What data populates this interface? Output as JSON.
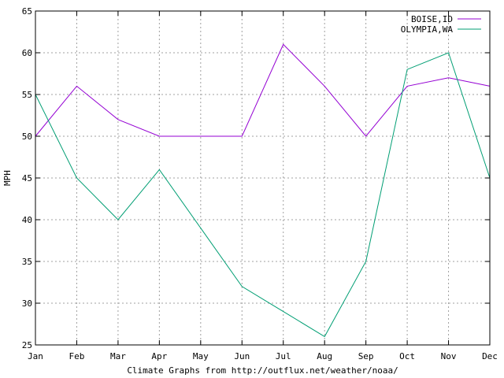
{
  "chart_data": {
    "type": "line",
    "title": "",
    "xlabel": "Climate Graphs from http://outflux.net/weather/noaa/",
    "ylabel": "MPH",
    "categories": [
      "Jan",
      "Feb",
      "Mar",
      "Apr",
      "May",
      "Jun",
      "Jul",
      "Aug",
      "Sep",
      "Oct",
      "Nov",
      "Dec"
    ],
    "ylim": [
      25,
      65
    ],
    "yticks": [
      25,
      30,
      35,
      40,
      45,
      50,
      55,
      60,
      65
    ],
    "grid": true,
    "legend_position": "top-right",
    "series": [
      {
        "name": "BOISE,ID",
        "color": "#9400d3",
        "values": [
          50,
          56,
          52,
          50,
          50,
          50,
          61,
          56,
          50,
          56,
          57,
          56
        ]
      },
      {
        "name": "OLYMPIA,WA",
        "color": "#009e73",
        "values": [
          55,
          45,
          40,
          46,
          39,
          32,
          29,
          26,
          35,
          58,
          60,
          45
        ]
      }
    ]
  }
}
